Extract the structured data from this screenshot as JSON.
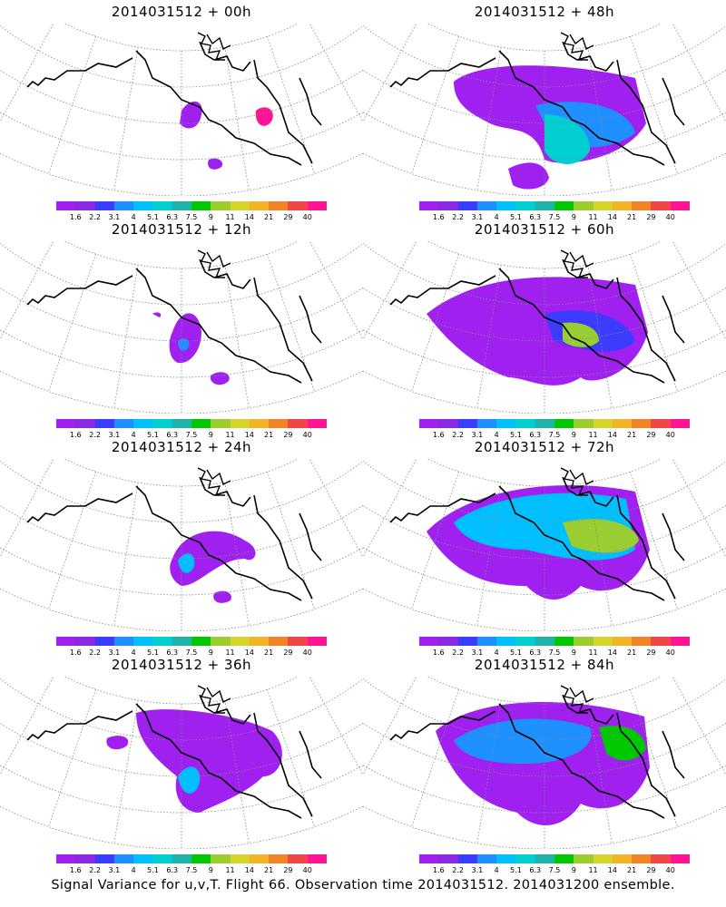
{
  "panels": [
    {
      "title": "2014031512 + 00h",
      "lead": "00h"
    },
    {
      "title": "2014031512 + 48h",
      "lead": "48h"
    },
    {
      "title": "2014031512 + 12h",
      "lead": "12h"
    },
    {
      "title": "2014031512 + 60h",
      "lead": "60h"
    },
    {
      "title": "2014031512 + 24h",
      "lead": "24h"
    },
    {
      "title": "2014031512 + 72h",
      "lead": "72h"
    },
    {
      "title": "2014031512 + 36h",
      "lead": "36h"
    },
    {
      "title": "2014031512 + 84h",
      "lead": "84h"
    }
  ],
  "colorbar": {
    "labels": [
      "1.6",
      "2.2",
      "3.1",
      "4",
      "5.1",
      "6.3",
      "7.5",
      "9",
      "11",
      "14",
      "21",
      "29",
      "40"
    ],
    "colors": [
      "#a020f0",
      "#8a2be2",
      "#3c3cff",
      "#1e90ff",
      "#00bfff",
      "#00ced1",
      "#20b2aa",
      "#00c800",
      "#9acd32",
      "#d4d42a",
      "#f0b428",
      "#f08228",
      "#f04646",
      "#ff1493"
    ]
  },
  "footer": "Signal Variance for u,v,T. Flight 66. Observation time 2014031512. 2014031200 ensemble."
}
